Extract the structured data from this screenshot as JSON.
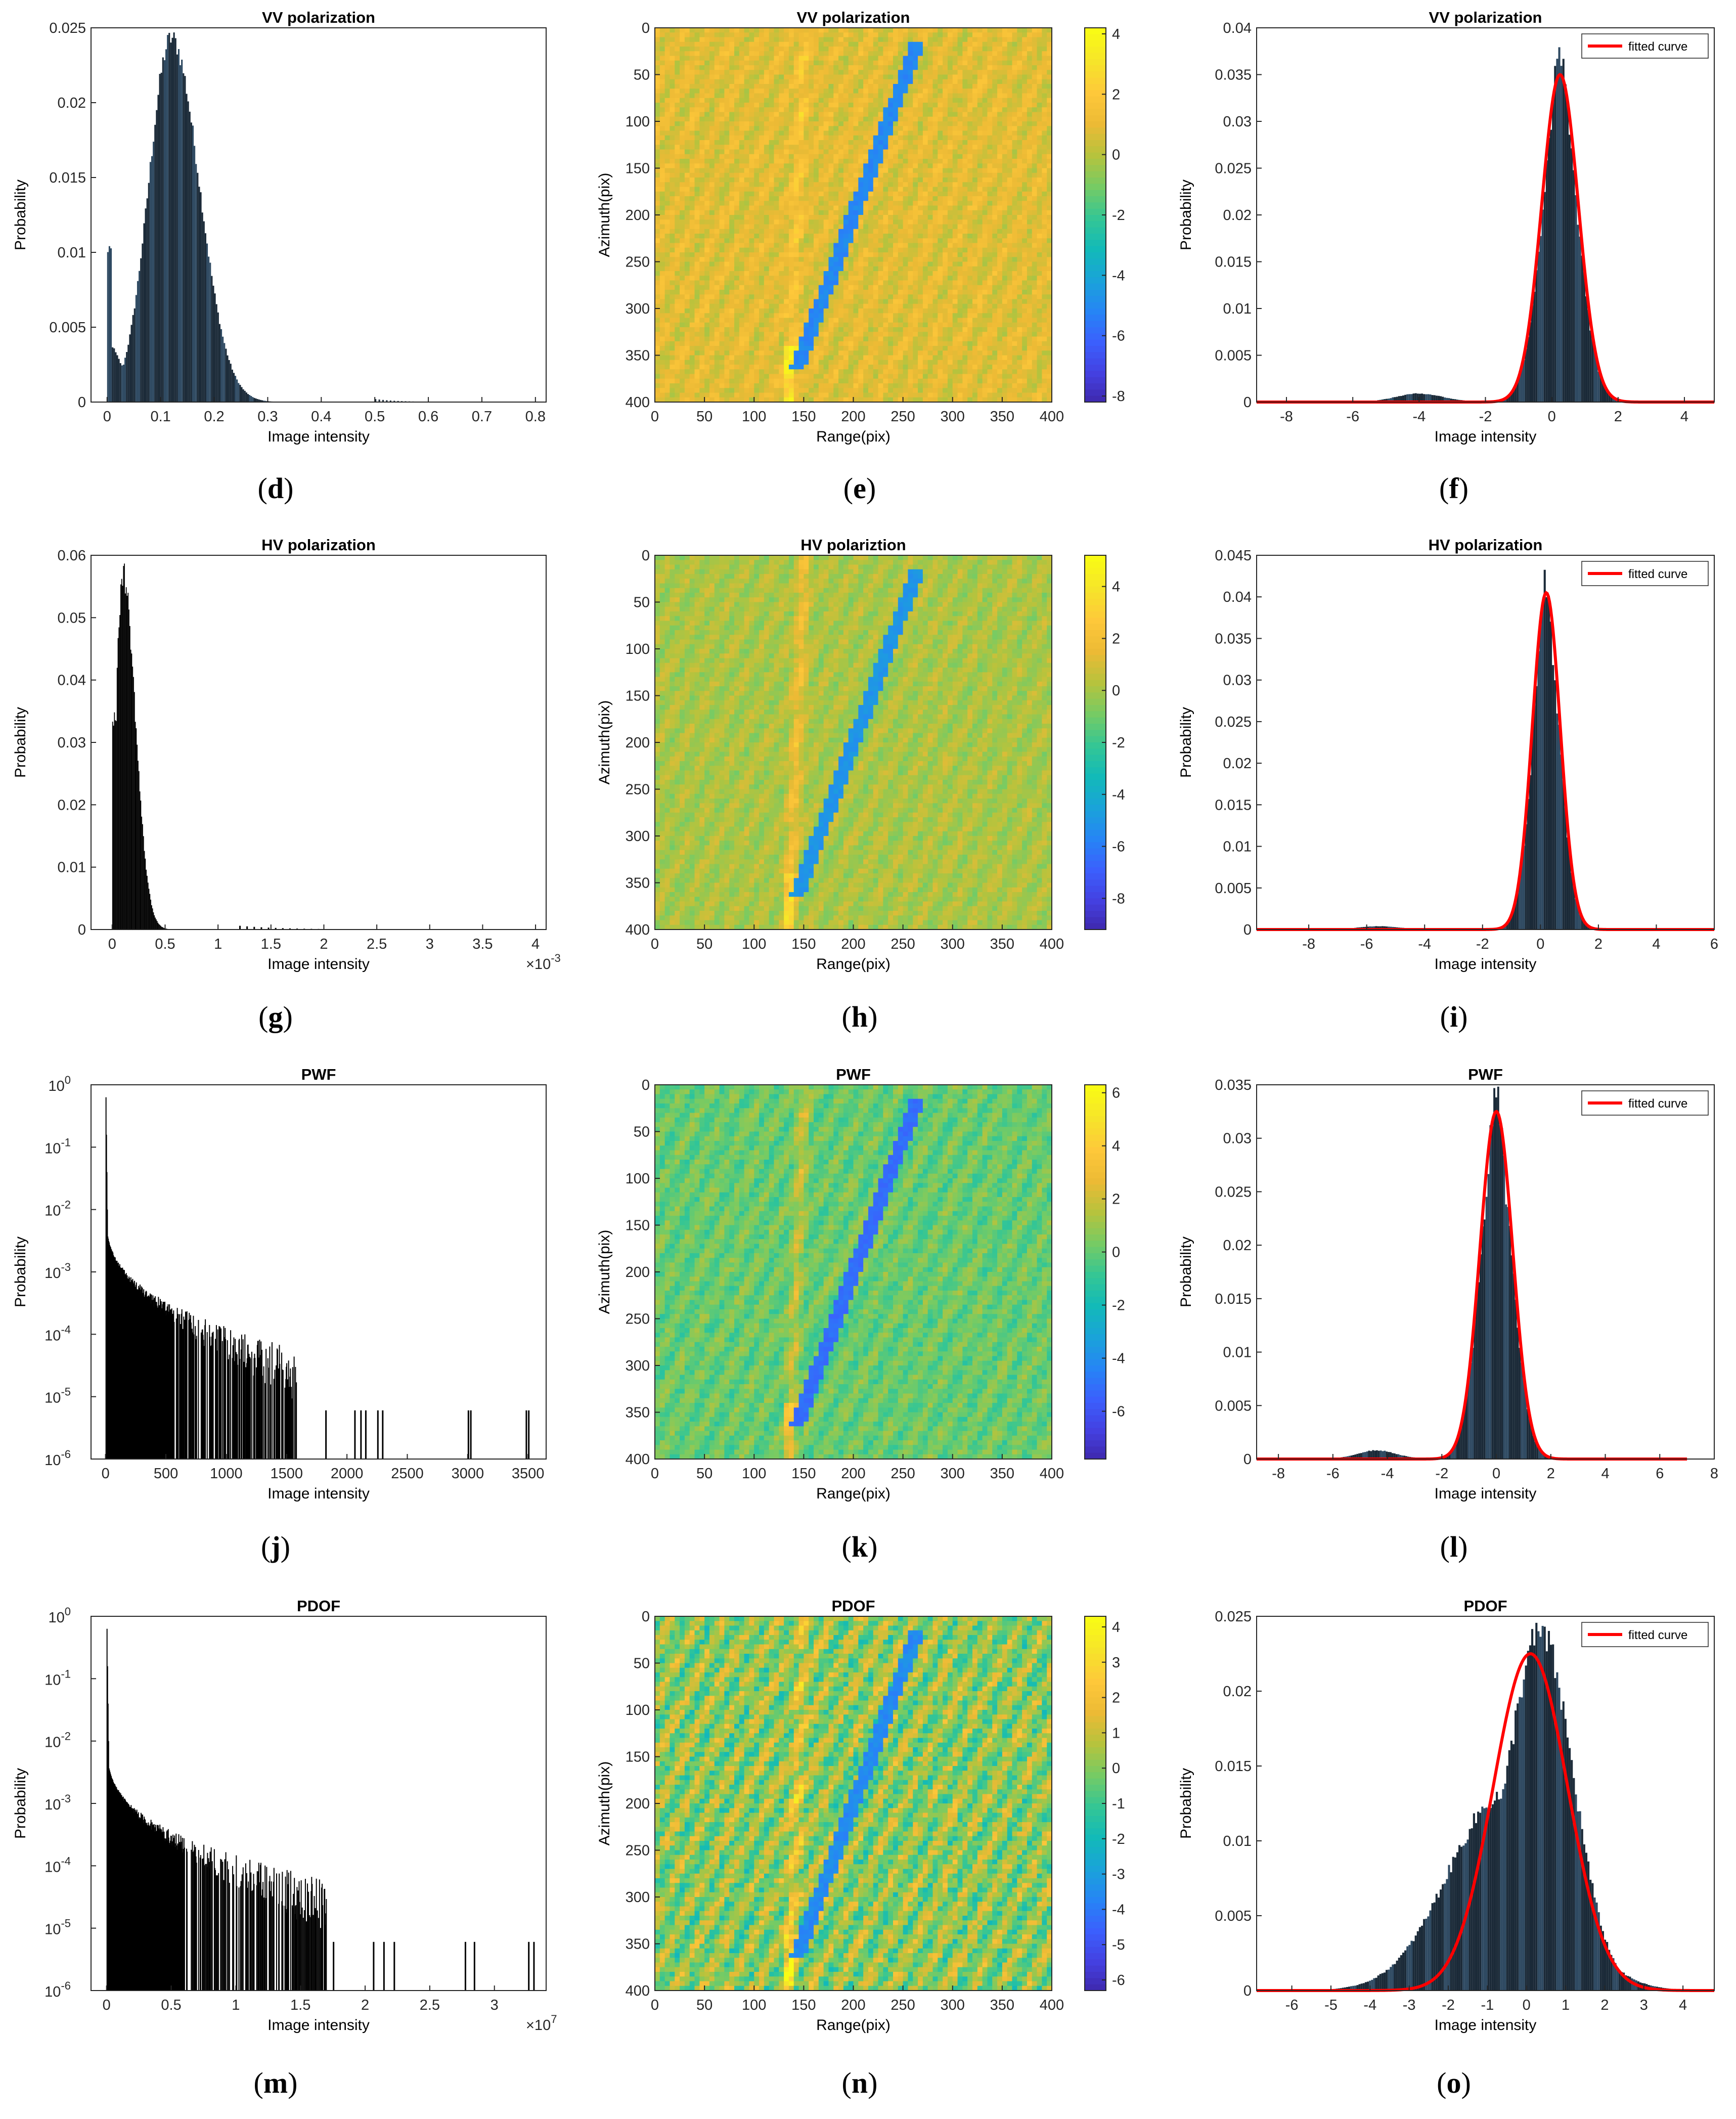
{
  "colors": {
    "hist_dark": "#1b2a38",
    "hist_light": "#2f4a62",
    "hist_black": "#000000",
    "fit_curve": "#ff0000",
    "parula": [
      "#3e26a8",
      "#4440e0",
      "#3b5ffd",
      "#2685f5",
      "#1aa3d9",
      "#12bab8",
      "#35c694",
      "#76cb64",
      "#b6c33d",
      "#ecba35",
      "#fec83a",
      "#f6e42a",
      "#f9fb15"
    ]
  },
  "captions": [
    "d",
    "e",
    "f",
    "g",
    "h",
    "i",
    "j",
    "k",
    "l",
    "m",
    "n",
    "o"
  ],
  "chart_data": [
    {
      "panel": "d",
      "type": "bar",
      "title": "VV polarization",
      "xlabel": "Image intensity",
      "ylabel": "Probability",
      "xlim": [
        -0.03,
        0.82
      ],
      "ylim": [
        0,
        0.025
      ],
      "xticks": [
        "0",
        "0.1",
        "0.2",
        "0.3",
        "0.4",
        "0.5",
        "0.6",
        "0.7",
        "0.8"
      ],
      "xtick_values": [
        0,
        0.1,
        0.2,
        0.3,
        0.4,
        0.5,
        0.6,
        0.7,
        0.8
      ],
      "yticks": [
        "0",
        "0.005",
        "0.01",
        "0.015",
        "0.02",
        "0.025"
      ],
      "ytick_values": [
        0,
        0.005,
        0.01,
        0.015,
        0.02,
        0.025
      ],
      "peaks": [
        {
          "x": 0.003,
          "y": 0.011
        },
        {
          "x": 0.12,
          "y": 0.0243
        }
      ],
      "x_extent": [
        0,
        0.8
      ]
    },
    {
      "panel": "e",
      "type": "heatmap",
      "title": "VV polarization",
      "xlabel": "Range(pix)",
      "ylabel": "Azimuth(pix)",
      "xlim": [
        0,
        400
      ],
      "ylim": [
        0,
        400
      ],
      "xticks": [
        "0",
        "50",
        "100",
        "150",
        "200",
        "250",
        "300",
        "350",
        "400"
      ],
      "yticks": [
        "0",
        "50",
        "100",
        "150",
        "200",
        "250",
        "300",
        "350",
        "400"
      ],
      "tick_values": [
        0,
        50,
        100,
        150,
        200,
        250,
        300,
        350,
        400
      ],
      "colorbar_ticks": [
        "4",
        "2",
        "0",
        "-2",
        "-4",
        "-6",
        "-8"
      ],
      "colorbar_values": [
        4,
        2,
        0,
        -2,
        -4,
        -6,
        -8
      ],
      "clim": [
        -8.2,
        4.2
      ],
      "track": {
        "start": [
          265,
          15
        ],
        "end": [
          143,
          365
        ],
        "value": -5
      }
    },
    {
      "panel": "f",
      "type": "bar",
      "title": "VV polarization",
      "xlabel": "Image intensity",
      "ylabel": "Probability",
      "xlim": [
        -8.9,
        4.9
      ],
      "ylim": [
        0,
        0.04
      ],
      "xticks": [
        "-8",
        "-6",
        "-4",
        "-2",
        "0",
        "2",
        "4"
      ],
      "xtick_values": [
        -8,
        -6,
        -4,
        -2,
        0,
        2,
        4
      ],
      "yticks": [
        "0",
        "0.005",
        "0.01",
        "0.015",
        "0.02",
        "0.025",
        "0.03",
        "0.035",
        "0.04"
      ],
      "ytick_values": [
        0,
        0.005,
        0.01,
        0.015,
        0.02,
        0.025,
        0.03,
        0.035,
        0.04
      ],
      "legend": "fitted curve",
      "fit": {
        "mu": 0.25,
        "sigma": 0.55,
        "peak": 0.035
      },
      "hist_peak": {
        "x": 0.25,
        "y": 0.0368
      },
      "secondary_bump": {
        "x": -4.0,
        "y": 0.0009
      }
    },
    {
      "panel": "g",
      "type": "bar",
      "title": "HV polarization",
      "xlabel": "Image intensity",
      "ylabel": "Probability",
      "xlim": [
        -0.0002,
        0.0041
      ],
      "ylim": [
        0,
        0.06
      ],
      "xticks": [
        "0",
        "0.5",
        "1",
        "1.5",
        "2",
        "2.5",
        "3",
        "3.5",
        "4"
      ],
      "xtick_values": [
        0,
        0.0005,
        0.001,
        0.0015,
        0.002,
        0.0025,
        0.003,
        0.0035,
        0.004
      ],
      "x_multiplier": "×10",
      "x_multiplier_exp": "-3",
      "yticks": [
        "0",
        "0.01",
        "0.02",
        "0.03",
        "0.04",
        "0.05",
        "0.06"
      ],
      "ytick_values": [
        0,
        0.01,
        0.02,
        0.03,
        0.04,
        0.05,
        0.06
      ],
      "peaks": [
        {
          "x": 2e-05,
          "y": 0.034
        },
        {
          "x": 0.0001,
          "y": 0.0572
        }
      ]
    },
    {
      "panel": "h",
      "type": "heatmap",
      "title": "HV polariztion",
      "xlabel": "Range(pix)",
      "ylabel": "Azimuth(pix)",
      "xlim": [
        0,
        400
      ],
      "ylim": [
        0,
        400
      ],
      "xticks": [
        "0",
        "50",
        "100",
        "150",
        "200",
        "250",
        "300",
        "350",
        "400"
      ],
      "yticks": [
        "0",
        "50",
        "100",
        "150",
        "200",
        "250",
        "300",
        "350",
        "400"
      ],
      "tick_values": [
        0,
        50,
        100,
        150,
        200,
        250,
        300,
        350,
        400
      ],
      "colorbar_ticks": [
        "4",
        "2",
        "0",
        "-2",
        "-4",
        "-6",
        "-8"
      ],
      "colorbar_values": [
        4,
        2,
        0,
        -2,
        -4,
        -6,
        -8
      ],
      "clim": [
        -9.2,
        5.2
      ],
      "track": {
        "start": [
          265,
          15
        ],
        "end": [
          143,
          365
        ],
        "value": -5
      }
    },
    {
      "panel": "i",
      "type": "bar",
      "title": "HV polarization",
      "xlabel": "Image intensity",
      "ylabel": "Probability",
      "xlim": [
        -9.8,
        6.0
      ],
      "ylim": [
        0,
        0.045
      ],
      "xticks": [
        "-8",
        "-6",
        "-4",
        "-2",
        "0",
        "2",
        "4",
        "6"
      ],
      "xtick_values": [
        -8,
        -6,
        -4,
        -2,
        0,
        2,
        4,
        6
      ],
      "yticks": [
        "0",
        "0.005",
        "0.01",
        "0.015",
        "0.02",
        "0.025",
        "0.03",
        "0.035",
        "0.04",
        "0.045"
      ],
      "ytick_values": [
        0,
        0.005,
        0.01,
        0.015,
        0.02,
        0.025,
        0.03,
        0.035,
        0.04,
        0.045
      ],
      "legend": "fitted curve",
      "fit": {
        "mu": 0.2,
        "sigma": 0.48,
        "peak": 0.0405
      },
      "hist_peak": {
        "x": 0.2,
        "y": 0.0418
      },
      "secondary_bump": {
        "x": -5.6,
        "y": 0.0004
      }
    },
    {
      "panel": "j",
      "type": "bar",
      "title": "PWF",
      "xlabel": "Image intensity",
      "ylabel": "Probability",
      "xlim": [
        -120,
        3650
      ],
      "ylim_log10": [
        -6,
        0
      ],
      "yscale": "log",
      "xticks": [
        "0",
        "500",
        "1000",
        "1500",
        "2000",
        "2500",
        "3000",
        "3500"
      ],
      "xtick_values": [
        0,
        500,
        1000,
        1500,
        2000,
        2500,
        3000,
        3500
      ],
      "yticks": [
        "10",
        "10",
        "10",
        "10",
        "10",
        "10",
        "10"
      ],
      "ytick_exponents": [
        "0",
        "-1",
        "-2",
        "-3",
        "-4",
        "-5",
        "-6"
      ],
      "ytick_values": [
        0,
        -1,
        -2,
        -3,
        -4,
        -5,
        -6
      ],
      "sparse_bars": [
        1820,
        2060,
        2110,
        2150,
        2250,
        2290,
        3000,
        3020,
        3480,
        3500
      ]
    },
    {
      "panel": "k",
      "type": "heatmap",
      "title": "PWF",
      "xlabel": "Range(pix)",
      "ylabel": "Azimuth(pix)",
      "xlim": [
        0,
        400
      ],
      "ylim": [
        0,
        400
      ],
      "xticks": [
        "0",
        "50",
        "100",
        "150",
        "200",
        "250",
        "300",
        "350",
        "400"
      ],
      "yticks": [
        "0",
        "50",
        "100",
        "150",
        "200",
        "250",
        "300",
        "350",
        "400"
      ],
      "tick_values": [
        0,
        50,
        100,
        150,
        200,
        250,
        300,
        350,
        400
      ],
      "colorbar_ticks": [
        "6",
        "4",
        "2",
        "0",
        "-2",
        "-4",
        "-6"
      ],
      "colorbar_values": [
        6,
        4,
        2,
        0,
        -2,
        -4,
        -6
      ],
      "clim": [
        -7.8,
        6.3
      ],
      "track": {
        "start": [
          265,
          15
        ],
        "end": [
          143,
          365
        ],
        "value": -5
      }
    },
    {
      "panel": "l",
      "type": "bar",
      "title": "PWF",
      "xlabel": "Image intensity",
      "ylabel": "Probability",
      "xlim": [
        -8.8,
        8.0
      ],
      "ylim": [
        0,
        0.035
      ],
      "xticks": [
        "-8",
        "-6",
        "-4",
        "-2",
        "0",
        "2",
        "4",
        "6",
        "8"
      ],
      "xtick_values": [
        -8,
        -6,
        -4,
        -2,
        0,
        2,
        4,
        6,
        8
      ],
      "yticks": [
        "0",
        "0.005",
        "0.01",
        "0.015",
        "0.02",
        "0.025",
        "0.03",
        "0.035"
      ],
      "ytick_values": [
        0,
        0.005,
        0.01,
        0.015,
        0.02,
        0.025,
        0.03,
        0.035
      ],
      "legend": "fitted curve",
      "fit": {
        "mu": 0.0,
        "sigma": 0.6,
        "peak": 0.0325
      },
      "hist_peak": {
        "x": 0.0,
        "y": 0.0337
      },
      "secondary_bump": {
        "x": -4.4,
        "y": 0.0008
      },
      "x_extent": [
        -8.8,
        7.0
      ]
    },
    {
      "panel": "m",
      "type": "bar",
      "title": "PDOF",
      "xlabel": "Image intensity",
      "ylabel": "Probability",
      "xlim": [
        -1200000,
        34000000
      ],
      "ylim_log10": [
        -6,
        0
      ],
      "yscale": "log",
      "xticks": [
        "0",
        "0.5",
        "1",
        "1.5",
        "2",
        "2.5",
        "3"
      ],
      "xtick_values": [
        0,
        5000000,
        10000000,
        15000000,
        20000000,
        25000000,
        30000000
      ],
      "x_multiplier": "×10",
      "x_multiplier_exp": "7",
      "yticks": [
        "10",
        "10",
        "10",
        "10",
        "10",
        "10",
        "10"
      ],
      "ytick_exponents": [
        "0",
        "-1",
        "-2",
        "-3",
        "-4",
        "-5",
        "-6"
      ],
      "ytick_values": [
        0,
        -1,
        -2,
        -3,
        -4,
        -5,
        -6
      ],
      "sparse_bars": [
        17500000,
        20600000,
        21400000,
        22200000,
        27700000,
        28400000,
        32600000,
        33000000
      ]
    },
    {
      "panel": "n",
      "type": "heatmap",
      "title": "PDOF",
      "xlabel": "Range(pix)",
      "ylabel": "Azimuth(pix)",
      "xlim": [
        0,
        400
      ],
      "ylim": [
        0,
        400
      ],
      "xticks": [
        "0",
        "50",
        "100",
        "150",
        "200",
        "250",
        "300",
        "350",
        "400"
      ],
      "yticks": [
        "0",
        "50",
        "100",
        "150",
        "200",
        "250",
        "300",
        "350",
        "400"
      ],
      "tick_values": [
        0,
        50,
        100,
        150,
        200,
        250,
        300,
        350,
        400
      ],
      "colorbar_ticks": [
        "4",
        "3",
        "2",
        "1",
        "0",
        "-1",
        "-2",
        "-3",
        "-4",
        "-5",
        "-6"
      ],
      "colorbar_values": [
        4,
        3,
        2,
        1,
        0,
        -1,
        -2,
        -3,
        -4,
        -5,
        -6
      ],
      "clim": [
        -6.3,
        4.3
      ],
      "track": {
        "start": [
          265,
          15
        ],
        "end": [
          143,
          365
        ],
        "value": -3.5
      }
    },
    {
      "panel": "o",
      "type": "bar",
      "title": "PDOF",
      "xlabel": "Image intensity",
      "ylabel": "Probability",
      "xlim": [
        -6.9,
        4.8
      ],
      "ylim": [
        0,
        0.025
      ],
      "xticks": [
        "-6",
        "-5",
        "-4",
        "-3",
        "-2",
        "-1",
        "0",
        "1",
        "2",
        "3",
        "4"
      ],
      "xtick_values": [
        -6,
        -5,
        -4,
        -3,
        -2,
        -1,
        0,
        1,
        2,
        3,
        4
      ],
      "yticks": [
        "0",
        "0.005",
        "0.01",
        "0.015",
        "0.02",
        "0.025"
      ],
      "ytick_values": [
        0,
        0.005,
        0.01,
        0.015,
        0.02,
        0.025
      ],
      "legend": "fitted curve",
      "fit": {
        "mu": 0.1,
        "sigma": 0.95,
        "peak": 0.0225
      },
      "hist_peak": {
        "x": 0.3,
        "y": 0.0241
      }
    }
  ]
}
